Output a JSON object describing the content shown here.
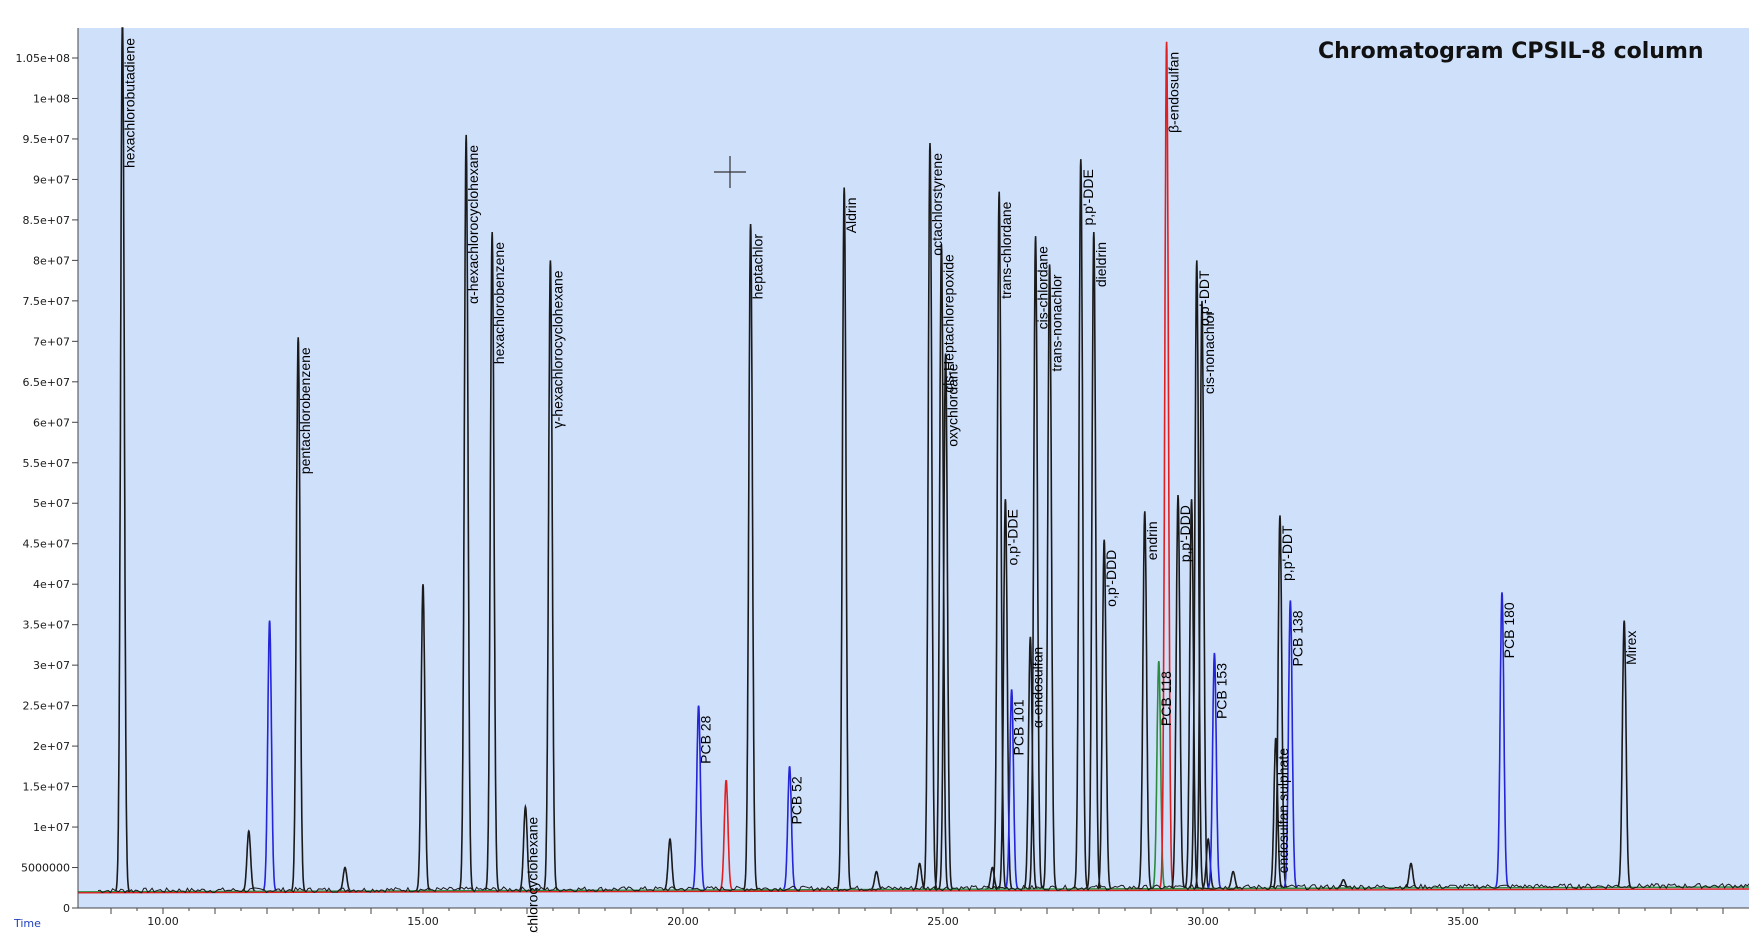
{
  "chart_data": {
    "type": "line",
    "title": "Chromatogram CPSIL-8 column",
    "xlabel": "Time",
    "ylabel": "",
    "xlim": [
      8.75,
      40.6
    ],
    "ylim": [
      0,
      108000000.0
    ],
    "x_ticks": [
      10,
      15,
      20,
      25,
      30,
      35
    ],
    "x_tick_labels": [
      "10.00",
      "15.00",
      "20.00",
      "25.00",
      "30.00",
      "35.00"
    ],
    "y_ticks": [
      0,
      5000000,
      10000000,
      15000000,
      20000000,
      25000000,
      30000000,
      35000000,
      40000000,
      45000000,
      50000000,
      55000000,
      60000000,
      65000000,
      70000000,
      75000000,
      80000000,
      85000000,
      90000000,
      95000000,
      100000000,
      105000000
    ],
    "y_tick_labels": [
      "0",
      "5000000",
      "1e+07",
      "1.5e+07",
      "2e+07",
      "2.5e+07",
      "3e+07",
      "3.5e+07",
      "4e+07",
      "4.5e+07",
      "5e+07",
      "5.5e+07",
      "6e+07",
      "6.5e+07",
      "7e+07",
      "7.5e+07",
      "8e+07",
      "8.5e+07",
      "9e+07",
      "9.5e+07",
      "1e+08",
      "1.05e+08"
    ],
    "grid": false,
    "background_color": "#cfe0fb",
    "series_colors": {
      "black": "#1a1a1a",
      "blue": "#2424d8",
      "red": "#e02020",
      "green": "#2e8b3e"
    },
    "baseline": {
      "start": 2000000,
      "end": 2600000
    },
    "peaks": [
      {
        "rt": 9.22,
        "height": 110000000,
        "color": "black",
        "label": "hexachlorobutadiene"
      },
      {
        "rt": 11.65,
        "height": 9500000,
        "color": "black",
        "label": ""
      },
      {
        "rt": 12.05,
        "height": 35500000,
        "color": "blue",
        "label": ""
      },
      {
        "rt": 12.6,
        "height": 70500000,
        "color": "black",
        "label": "pentachlorobenzene"
      },
      {
        "rt": 13.5,
        "height": 5000000,
        "color": "black",
        "label": ""
      },
      {
        "rt": 15.0,
        "height": 40000000,
        "color": "black",
        "label": ""
      },
      {
        "rt": 15.83,
        "height": 95500000,
        "color": "black",
        "label": "α-hexachlorocyclohexane"
      },
      {
        "rt": 16.33,
        "height": 83500000,
        "color": "black",
        "label": "hexachlorobenzene"
      },
      {
        "rt": 16.97,
        "height": 12500000,
        "color": "black",
        "label": "β-hexachlorocyclohexane"
      },
      {
        "rt": 17.45,
        "height": 80000000,
        "color": "black",
        "label": "γ-hexachlorocyclohexane"
      },
      {
        "rt": 19.75,
        "height": 8500000,
        "color": "black",
        "label": ""
      },
      {
        "rt": 20.3,
        "height": 25000000,
        "color": "blue",
        "label": "PCB 28"
      },
      {
        "rt": 20.83,
        "height": 15800000,
        "color": "red",
        "label": ""
      },
      {
        "rt": 21.3,
        "height": 84500000,
        "color": "black",
        "label": "heptachlor"
      },
      {
        "rt": 22.05,
        "height": 17500000,
        "color": "blue",
        "label": "PCB 52"
      },
      {
        "rt": 23.1,
        "height": 89000000,
        "color": "black",
        "label": "Aldrin"
      },
      {
        "rt": 23.72,
        "height": 4500000,
        "color": "black",
        "label": ""
      },
      {
        "rt": 24.55,
        "height": 5500000,
        "color": "black",
        "label": ""
      },
      {
        "rt": 24.75,
        "height": 94500000,
        "color": "black",
        "label": "octachlorstyrene"
      },
      {
        "rt": 24.97,
        "height": 82000000,
        "color": "black",
        "label": "cis-Heptachlorepoxide"
      },
      {
        "rt": 25.05,
        "height": 68500000,
        "color": "black",
        "label": "oxychlordane"
      },
      {
        "rt": 25.95,
        "height": 5000000,
        "color": "black",
        "label": ""
      },
      {
        "rt": 26.08,
        "height": 88500000,
        "color": "black",
        "label": "trans-chlordane"
      },
      {
        "rt": 26.2,
        "height": 50500000,
        "color": "black",
        "label": "o,p'-DDE"
      },
      {
        "rt": 26.32,
        "height": 27000000,
        "color": "blue",
        "label": "PCB 101"
      },
      {
        "rt": 26.68,
        "height": 33500000,
        "color": "black",
        "label": "α-endosulfan"
      },
      {
        "rt": 26.78,
        "height": 83000000,
        "color": "black",
        "label": "cis-chlordane"
      },
      {
        "rt": 27.05,
        "height": 79500000,
        "color": "black",
        "label": "trans-nonachlor"
      },
      {
        "rt": 27.65,
        "height": 92500000,
        "color": "black",
        "label": "p,p'-DDE"
      },
      {
        "rt": 27.9,
        "height": 83500000,
        "color": "black",
        "label": "dieldrin"
      },
      {
        "rt": 28.1,
        "height": 45500000,
        "color": "black",
        "label": "o,p'-DDD"
      },
      {
        "rt": 28.88,
        "height": 49000000,
        "color": "black",
        "label": "endrin"
      },
      {
        "rt": 29.15,
        "height": 30500000,
        "color": "green",
        "label": "PCB 118"
      },
      {
        "rt": 29.3,
        "height": 107000000,
        "color": "red",
        "label": "β-endosulfan"
      },
      {
        "rt": 29.52,
        "height": 51000000,
        "color": "black",
        "label": "p,p'-DDD"
      },
      {
        "rt": 29.78,
        "height": 50500000,
        "color": "black",
        "label": ""
      },
      {
        "rt": 29.88,
        "height": 80000000,
        "color": "black",
        "label": "o,p'-DDT"
      },
      {
        "rt": 29.98,
        "height": 75000000,
        "color": "black",
        "label": "cis-nonachlor"
      },
      {
        "rt": 30.1,
        "height": 8500000,
        "color": "black",
        "label": ""
      },
      {
        "rt": 30.22,
        "height": 31500000,
        "color": "blue",
        "label": "PCB 153"
      },
      {
        "rt": 30.58,
        "height": 4500000,
        "color": "black",
        "label": ""
      },
      {
        "rt": 31.4,
        "height": 21000000,
        "color": "black",
        "label": "endosulfan sulphate"
      },
      {
        "rt": 31.48,
        "height": 48500000,
        "color": "black",
        "label": "p,p'-DDT"
      },
      {
        "rt": 31.68,
        "height": 38000000,
        "color": "blue",
        "label": "PCB 138"
      },
      {
        "rt": 32.7,
        "height": 3500000,
        "color": "black",
        "label": ""
      },
      {
        "rt": 34.0,
        "height": 5500000,
        "color": "black",
        "label": ""
      },
      {
        "rt": 35.75,
        "height": 39000000,
        "color": "blue",
        "label": "PCB 180"
      },
      {
        "rt": 38.1,
        "height": 35500000,
        "color": "black",
        "label": "Mirex"
      }
    ]
  }
}
